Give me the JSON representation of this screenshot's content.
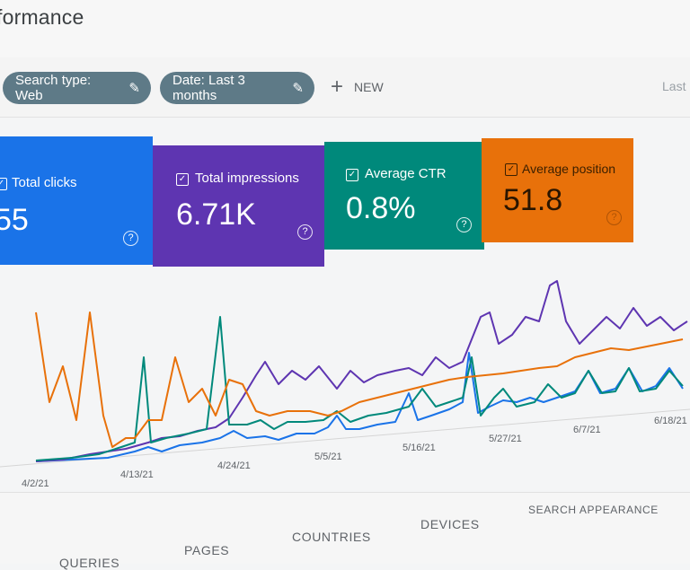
{
  "header": {
    "title": "formance"
  },
  "filters": {
    "search_type": "Search type: Web",
    "date_range": "Date: Last 3 months",
    "new_label": "NEW",
    "last_label": "Last"
  },
  "metrics": [
    {
      "label": "Total clicks",
      "value": "55",
      "color": "#1a73e8"
    },
    {
      "label": "Total impressions",
      "value": "6.71K",
      "color": "#5e35b1"
    },
    {
      "label": "Average CTR",
      "value": "0.8%",
      "color": "#00897b"
    },
    {
      "label": "Average position",
      "value": "51.8",
      "color": "#e8710a"
    }
  ],
  "chart_data": {
    "type": "line",
    "x": [
      "4/2/21",
      "4/13/21",
      "4/24/21",
      "5/5/21",
      "5/16/21",
      "5/27/21",
      "6/7/21",
      "6/18/21"
    ],
    "series": [
      {
        "name": "Total clicks",
        "color": "#1a73e8"
      },
      {
        "name": "Total impressions",
        "color": "#5e35b1"
      },
      {
        "name": "Average CTR",
        "color": "#00897b"
      },
      {
        "name": "Average position",
        "color": "#e8710a"
      }
    ],
    "tick_labels": [
      "4/2/21",
      "4/13/21",
      "4/24/21",
      "5/5/21",
      "5/16/21",
      "5/27/21",
      "6/7/21",
      "6/18/21"
    ]
  },
  "tabs": [
    "QUERIES",
    "PAGES",
    "COUNTRIES",
    "DEVICES",
    "SEARCH APPEARANCE"
  ]
}
